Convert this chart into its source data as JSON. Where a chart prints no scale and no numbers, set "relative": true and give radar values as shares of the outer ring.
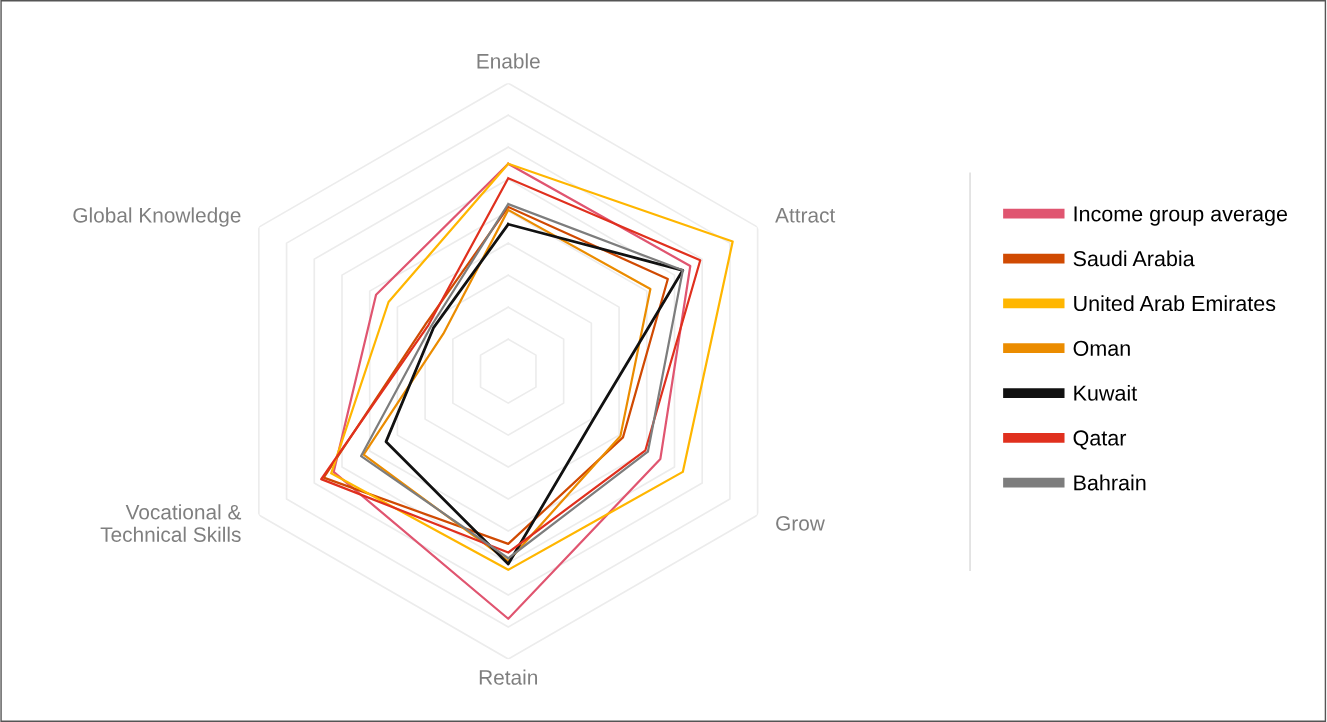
{
  "chart_data": {
    "type": "radar",
    "relative": true,
    "grid": true,
    "legend": "right",
    "categories": [
      "Enable",
      "Attract",
      "Grow",
      "Retain",
      "Vocational &\nTechnical Skills",
      "Global Knowledge"
    ],
    "series": [
      {
        "name": "Income group average",
        "color": "#e05570",
        "values": [
          0.72,
          0.73,
          0.61,
          0.86,
          0.7,
          0.53
        ]
      },
      {
        "name": "Saudi Arabia",
        "color": "#d04a02",
        "values": [
          0.57,
          0.64,
          0.46,
          0.6,
          0.74,
          0.33
        ]
      },
      {
        "name": "United Arab Emirates",
        "color": "#ffb600",
        "values": [
          0.72,
          0.9,
          0.7,
          0.69,
          0.71,
          0.48
        ]
      },
      {
        "name": "Oman",
        "color": "#eb8c00",
        "values": [
          0.56,
          0.57,
          0.45,
          0.66,
          0.58,
          0.26
        ]
      },
      {
        "name": "Kuwait",
        "color": "#111111",
        "values": [
          0.51,
          0.7,
          0.34,
          0.67,
          0.49,
          0.3
        ]
      },
      {
        "name": "Qatar",
        "color": "#e0301e",
        "values": [
          0.67,
          0.77,
          0.55,
          0.63,
          0.75,
          0.32
        ]
      },
      {
        "name": "Bahrain",
        "color": "#7d7d7d",
        "values": [
          0.58,
          0.7,
          0.56,
          0.65,
          0.59,
          0.31
        ]
      }
    ]
  }
}
